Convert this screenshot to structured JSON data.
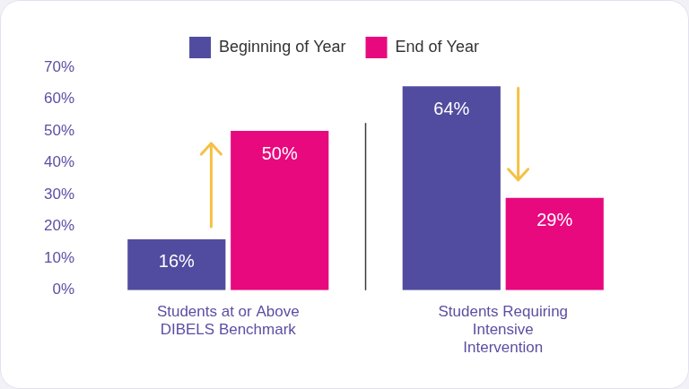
{
  "chart_data": {
    "type": "bar",
    "categories": [
      "Students at or Above DIBELS Benchmark",
      "Students Requiring Intensive Intervention"
    ],
    "series": [
      {
        "name": "Beginning of Year",
        "color": "#514c9f",
        "values": [
          16,
          64
        ],
        "value_labels": [
          "16%",
          "64%"
        ]
      },
      {
        "name": "End of Year",
        "color": "#e8097e",
        "values": [
          50,
          29
        ],
        "value_labels": [
          "50%",
          "29%"
        ]
      }
    ],
    "ylim": [
      0,
      70
    ],
    "yticks": [
      {
        "value": 0,
        "label": "0%"
      },
      {
        "value": 10,
        "label": "10%"
      },
      {
        "value": 20,
        "label": "20%"
      },
      {
        "value": 30,
        "label": "30%"
      },
      {
        "value": 40,
        "label": "40%"
      },
      {
        "value": 50,
        "label": "50%"
      },
      {
        "value": 60,
        "label": "60%"
      },
      {
        "value": 70,
        "label": "70%"
      }
    ],
    "grid": false,
    "legend": "top",
    "data_labels": true
  }
}
